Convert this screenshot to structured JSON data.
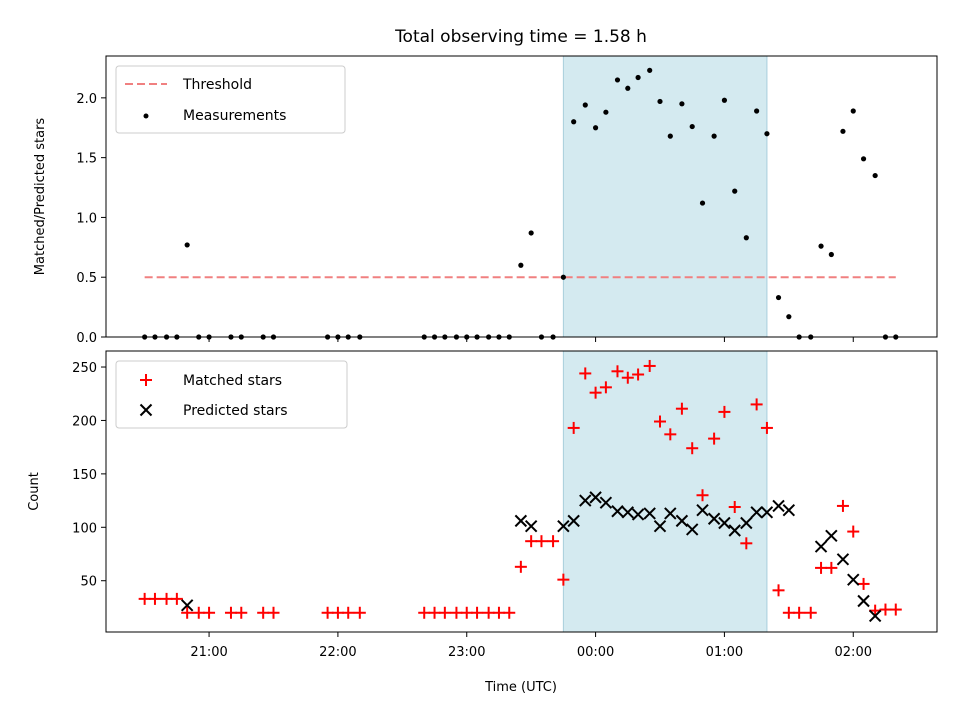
{
  "chart_data": {
    "type": "scatter",
    "title": "Total observing time = 1.58 h",
    "xlabel": "Time (UTC)",
    "x_unit": "hours after 00:00 UTC",
    "xlim": [
      -3.8,
      2.65
    ],
    "xticks": [
      -3,
      -2,
      -1,
      0,
      1,
      2
    ],
    "xtick_labels": [
      "21:00",
      "22:00",
      "23:00",
      "00:00",
      "01:00",
      "02:00"
    ],
    "shaded_interval": [
      -0.25,
      1.33
    ],
    "shade_color": "#d4eaf0",
    "top": {
      "ylabel": "Matched/Predicted stars",
      "ylim": [
        0,
        2.35
      ],
      "yticks": [
        0.0,
        0.5,
        1.0,
        1.5,
        2.0
      ],
      "ytick_labels": [
        "0.0",
        "0.5",
        "1.0",
        "1.5",
        "2.0"
      ],
      "legend_position": "upper-left",
      "threshold": {
        "name": "Threshold",
        "value": 0.5,
        "x_range": [
          -3.5,
          2.33
        ],
        "color": "#f08080"
      },
      "series": [
        {
          "name": "Measurements",
          "marker": "dot",
          "color": "#000000",
          "x": [
            -3.5,
            -3.42,
            -3.33,
            -3.25,
            -3.17,
            -3.08,
            -3.0,
            -2.83,
            -2.75,
            -2.58,
            -2.5,
            -2.08,
            -2.0,
            -1.92,
            -1.83,
            -1.33,
            -1.25,
            -1.17,
            -1.08,
            -1.0,
            -0.92,
            -0.83,
            -0.75,
            -0.67,
            -0.58,
            -0.5,
            -0.42,
            -0.33,
            -0.25,
            -0.17,
            -0.08,
            0.0,
            0.08,
            0.17,
            0.25,
            0.33,
            0.42,
            0.5,
            0.58,
            0.67,
            0.75,
            0.83,
            0.92,
            1.0,
            1.08,
            1.17,
            1.25,
            1.33,
            1.42,
            1.5,
            1.58,
            1.67,
            1.75,
            1.83,
            1.92,
            2.0,
            2.08,
            2.17,
            2.25,
            2.33
          ],
          "y": [
            0,
            0,
            0,
            0,
            0.77,
            0,
            0,
            0,
            0,
            0,
            0,
            0,
            0,
            0,
            0,
            0,
            0,
            0,
            0,
            0,
            0,
            0,
            0,
            0,
            0.6,
            0.87,
            0,
            0,
            0.5,
            1.8,
            1.94,
            1.75,
            1.88,
            2.15,
            2.08,
            2.17,
            2.23,
            1.97,
            1.68,
            1.95,
            1.76,
            1.12,
            1.68,
            1.98,
            1.22,
            0.83,
            1.89,
            1.7,
            0.33,
            0.17,
            0,
            0,
            0.76,
            0.69,
            1.72,
            1.89,
            1.49,
            1.35,
            0,
            0
          ]
        }
      ]
    },
    "bottom": {
      "ylabel": "Count",
      "ylim": [
        2,
        265
      ],
      "yticks": [
        50,
        100,
        150,
        200,
        250
      ],
      "ytick_labels": [
        "50",
        "100",
        "150",
        "200",
        "250"
      ],
      "legend_position": "upper-left",
      "series": [
        {
          "name": "Matched stars",
          "marker": "plus",
          "color": "#ff0000",
          "x": [
            -3.5,
            -3.42,
            -3.33,
            -3.25,
            -3.17,
            -3.08,
            -3.0,
            -2.83,
            -2.75,
            -2.58,
            -2.5,
            -2.08,
            -2.0,
            -1.92,
            -1.83,
            -1.33,
            -1.25,
            -1.17,
            -1.08,
            -1.0,
            -0.92,
            -0.83,
            -0.75,
            -0.67,
            -0.58,
            -0.5,
            -0.42,
            -0.33,
            -0.25,
            -0.17,
            -0.08,
            0.0,
            0.08,
            0.17,
            0.25,
            0.33,
            0.42,
            0.5,
            0.58,
            0.67,
            0.75,
            0.83,
            0.92,
            1.0,
            1.08,
            1.17,
            1.25,
            1.33,
            1.42,
            1.5,
            1.58,
            1.67,
            1.75,
            1.83,
            1.92,
            2.0,
            2.08,
            2.17,
            2.25,
            2.33
          ],
          "y": [
            33,
            33,
            33,
            33,
            20,
            20,
            20,
            20,
            20,
            20,
            20,
            20,
            20,
            20,
            20,
            20,
            20,
            20,
            20,
            20,
            20,
            20,
            20,
            20,
            63,
            87,
            87,
            87,
            51,
            193,
            244,
            226,
            231,
            246,
            240,
            243,
            251,
            199,
            187,
            211,
            174,
            130,
            183,
            208,
            119,
            85,
            215,
            193,
            41,
            20,
            20,
            20,
            62,
            62,
            120,
            96,
            47,
            22,
            23,
            23
          ]
        },
        {
          "name": "Predicted stars",
          "marker": "x",
          "color": "#000000",
          "x": [
            -3.17,
            -0.58,
            -0.5,
            -0.25,
            -0.17,
            -0.08,
            0.0,
            0.08,
            0.17,
            0.25,
            0.33,
            0.42,
            0.5,
            0.58,
            0.67,
            0.75,
            0.83,
            0.92,
            1.0,
            1.08,
            1.17,
            1.25,
            1.33,
            1.42,
            1.5,
            1.75,
            1.83,
            1.92,
            2.0,
            2.08,
            2.17
          ],
          "y": [
            27,
            106,
            101,
            101,
            106,
            125,
            128,
            123,
            115,
            114,
            112,
            113,
            101,
            113,
            106,
            98,
            116,
            108,
            104,
            97,
            104,
            114,
            114,
            120,
            116,
            82,
            92,
            70,
            51,
            31,
            17
          ]
        }
      ]
    }
  }
}
